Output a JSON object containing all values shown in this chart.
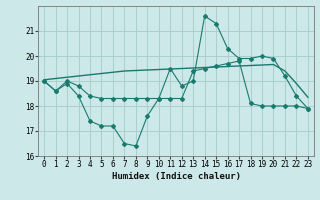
{
  "xlabel": "Humidex (Indice chaleur)",
  "x": [
    0,
    1,
    2,
    3,
    4,
    5,
    6,
    7,
    8,
    9,
    10,
    11,
    12,
    13,
    14,
    15,
    16,
    17,
    18,
    19,
    20,
    21,
    22,
    23
  ],
  "line1": [
    19.0,
    18.6,
    18.9,
    18.4,
    17.4,
    17.2,
    17.2,
    16.5,
    16.4,
    17.6,
    18.3,
    19.5,
    18.8,
    19.0,
    21.6,
    21.3,
    20.3,
    19.9,
    19.9,
    20.0,
    19.9,
    19.2,
    18.4,
    17.9
  ],
  "line2": [
    19.0,
    18.6,
    19.0,
    18.8,
    18.4,
    18.3,
    18.3,
    18.3,
    18.3,
    18.3,
    18.3,
    18.3,
    18.3,
    19.4,
    19.5,
    19.6,
    19.7,
    19.8,
    18.1,
    18.0,
    18.0,
    18.0,
    18.0,
    17.9
  ],
  "trend": [
    19.05,
    19.1,
    19.15,
    19.2,
    19.25,
    19.3,
    19.35,
    19.4,
    19.42,
    19.44,
    19.46,
    19.48,
    19.5,
    19.52,
    19.54,
    19.56,
    19.58,
    19.6,
    19.62,
    19.64,
    19.66,
    19.4,
    18.9,
    18.35
  ],
  "line_color": "#1a7a6e",
  "bg_color": "#cce8e8",
  "grid_color": "#aacece",
  "ylim": [
    16,
    22
  ],
  "yticks": [
    16,
    17,
    18,
    19,
    20,
    21
  ],
  "xticks": [
    0,
    1,
    2,
    3,
    4,
    5,
    6,
    7,
    8,
    9,
    10,
    11,
    12,
    13,
    14,
    15,
    16,
    17,
    18,
    19,
    20,
    21,
    22,
    23
  ]
}
